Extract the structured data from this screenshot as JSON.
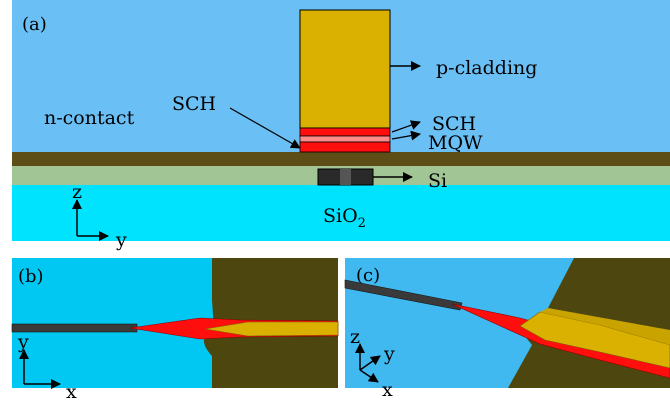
{
  "panel_a": {
    "tag": "(a)",
    "labels": {
      "p_cladding": "p-cladding",
      "sch_left": "SCH",
      "sch_right": "SCH",
      "mqw": "MQW",
      "n_contact": "n-contact",
      "si": "Si",
      "sio2_main": "SiO",
      "sio2_sub": "2"
    },
    "axes": {
      "vertical": "z",
      "horizontal": "y"
    }
  },
  "panel_b": {
    "tag": "(b)",
    "axes": {
      "vertical": "y",
      "horizontal": "x"
    }
  },
  "panel_c": {
    "tag": "(c)",
    "axes": {
      "vertical": "z",
      "depth": "y",
      "horizontal": "x"
    }
  },
  "colors": {
    "sky": "#6abff5",
    "sio2": "#00e3ff",
    "n_layer": "#5d4d16",
    "si_slab": "#a2c596",
    "p_cladding": "#dab100",
    "sch_mqw": "#ff0e0e",
    "si_waveguide": "#2a2a2a",
    "panel_c_bg": "#3fb9f0",
    "panel_b_bg": "#00c8f2",
    "olive": "#4e460f"
  }
}
